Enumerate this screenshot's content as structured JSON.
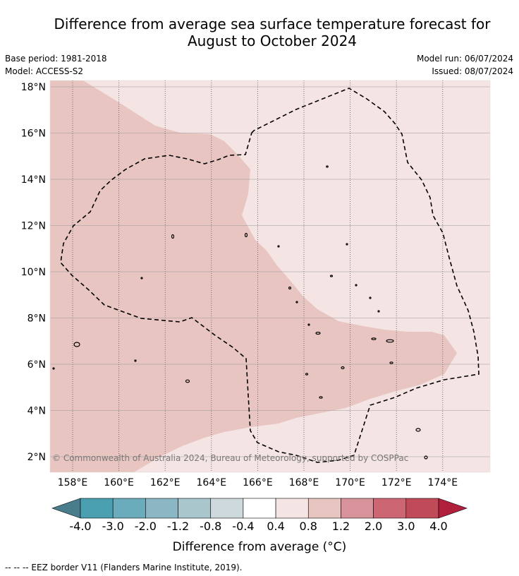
{
  "title_line1": "Difference from average sea surface temperature forecast for",
  "title_line2": "August to October 2024",
  "base_period": "Base period: 1981-2018",
  "model": "Model: ACCESS-S2",
  "model_run": "Model run: 06/07/2024",
  "issued": "Issued: 08/07/2024",
  "copyright": "© Commonwealth of Australia 2024, Bureau of Meteorology, supported by COSPPac",
  "colorbar_label": "Difference from average (°C)",
  "footer": "--  --  -- EEZ border V11 (Flanders Marine Institute, 2019).",
  "chart_data": {
    "type": "map",
    "lon_range": [
      157,
      176
    ],
    "lat_range": [
      1.5,
      18.2
    ],
    "lon_ticks": [
      "158°E",
      "160°E",
      "162°E",
      "164°E",
      "166°E",
      "168°E",
      "170°E",
      "172°E",
      "174°E"
    ],
    "lat_ticks": [
      "2°N",
      "4°N",
      "6°N",
      "8°N",
      "10°N",
      "12°N",
      "14°N",
      "16°N",
      "18°N"
    ],
    "colorbar": {
      "tick_labels": [
        "-4.0",
        "-3.0",
        "-2.0",
        "-1.2",
        "-0.8",
        "-0.4",
        "0.4",
        "0.8",
        "1.2",
        "2.0",
        "3.0",
        "4.0"
      ],
      "colors": [
        "#4a7d8b",
        "#4aa0b0",
        "#6aacbc",
        "#8ab7c3",
        "#a8c6cb",
        "#cdd9dc",
        "#ffffff",
        "#f4e4e3",
        "#e8c5c1",
        "#d8929a",
        "#cc6672",
        "#c04a58",
        "#b0203c"
      ]
    },
    "shaded_classes": [
      "0.4 to 0.8",
      "0.8 to 1.2"
    ],
    "grid": true
  }
}
